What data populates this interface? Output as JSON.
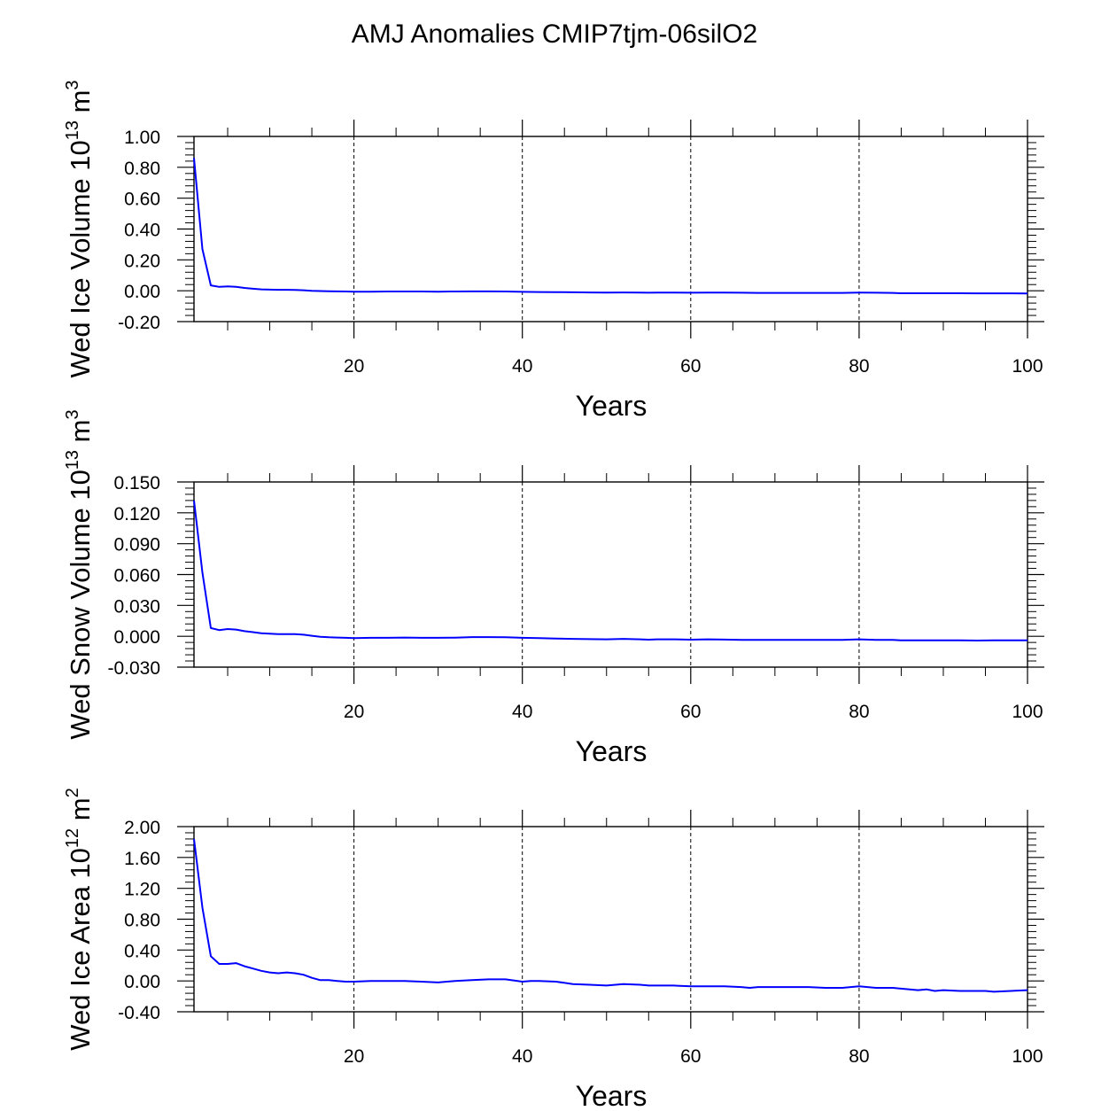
{
  "title": "AMJ Anomalies CMIP7tjm-06silO2",
  "chart_data": [
    {
      "type": "line",
      "title": "AMJ Anomalies CMIP7tjm-06silO2",
      "xlabel": "Years",
      "ylabel": "Wed Ice Volume 10",
      "ylabel_exp": "13",
      "ylabel_unit": " m",
      "ylabel_unit_exp": "3",
      "xlim": [
        1,
        100
      ],
      "ylim": [
        -0.2,
        1.0
      ],
      "xticks": [
        20,
        40,
        60,
        80,
        100
      ],
      "yticks": [
        -0.2,
        0.0,
        0.2,
        0.4,
        0.6,
        0.8,
        1.0
      ],
      "ytick_labels": [
        "-0.20",
        "0.00",
        "0.20",
        "0.40",
        "0.60",
        "0.80",
        "1.00"
      ],
      "grid_x": [
        20,
        40,
        60,
        80
      ],
      "series": [
        {
          "name": "Wed Ice Volume",
          "color": "#0000ff",
          "x": [
            1,
            2,
            3,
            4,
            5,
            6,
            7,
            8,
            9,
            10,
            11,
            12,
            13,
            14,
            15,
            16,
            17,
            18,
            19,
            20,
            22,
            24,
            26,
            28,
            30,
            32,
            34,
            36,
            38,
            40,
            42,
            44,
            46,
            48,
            50,
            52,
            54,
            55,
            56,
            58,
            60,
            62,
            64,
            66,
            68,
            70,
            72,
            74,
            76,
            78,
            80,
            82,
            84,
            85,
            86,
            88,
            90,
            92,
            94,
            96,
            98,
            100
          ],
          "values": [
            0.86,
            0.27,
            0.035,
            0.025,
            0.028,
            0.025,
            0.018,
            0.013,
            0.009,
            0.007,
            0.006,
            0.006,
            0.005,
            0.003,
            0.0,
            -0.002,
            -0.003,
            -0.004,
            -0.005,
            -0.006,
            -0.006,
            -0.005,
            -0.005,
            -0.005,
            -0.006,
            -0.005,
            -0.004,
            -0.004,
            -0.005,
            -0.007,
            -0.008,
            -0.009,
            -0.01,
            -0.011,
            -0.012,
            -0.011,
            -0.012,
            -0.013,
            -0.012,
            -0.012,
            -0.013,
            -0.012,
            -0.012,
            -0.013,
            -0.014,
            -0.014,
            -0.014,
            -0.014,
            -0.014,
            -0.014,
            -0.012,
            -0.013,
            -0.014,
            -0.016,
            -0.016,
            -0.016,
            -0.016,
            -0.016,
            -0.017,
            -0.017,
            -0.017,
            -0.018
          ]
        }
      ]
    },
    {
      "type": "line",
      "xlabel": "Years",
      "ylabel": "Wed Snow Volume 10",
      "ylabel_exp": "13",
      "ylabel_unit": " m",
      "ylabel_unit_exp": "3",
      "xlim": [
        1,
        100
      ],
      "ylim": [
        -0.03,
        0.15
      ],
      "xticks": [
        20,
        40,
        60,
        80,
        100
      ],
      "yticks": [
        -0.03,
        0.0,
        0.03,
        0.06,
        0.09,
        0.12,
        0.15
      ],
      "ytick_labels": [
        "-0.030",
        "0.000",
        "0.030",
        "0.060",
        "0.090",
        "0.120",
        "0.150"
      ],
      "grid_x": [
        20,
        40,
        60,
        80
      ],
      "series": [
        {
          "name": "Wed Snow Volume",
          "color": "#0000ff",
          "x": [
            1,
            2,
            3,
            4,
            5,
            6,
            7,
            8,
            9,
            10,
            11,
            12,
            13,
            14,
            15,
            16,
            17,
            18,
            19,
            20,
            22,
            24,
            26,
            28,
            30,
            32,
            34,
            36,
            38,
            40,
            42,
            44,
            46,
            48,
            50,
            52,
            54,
            55,
            56,
            58,
            60,
            62,
            64,
            66,
            68,
            70,
            72,
            74,
            76,
            78,
            80,
            82,
            84,
            85,
            86,
            88,
            90,
            92,
            94,
            96,
            98,
            100
          ],
          "values": [
            0.132,
            0.062,
            0.008,
            0.006,
            0.007,
            0.0065,
            0.005,
            0.004,
            0.003,
            0.0025,
            0.002,
            0.002,
            0.002,
            0.0015,
            0.0005,
            -0.0005,
            -0.001,
            -0.0012,
            -0.0015,
            -0.0018,
            -0.0015,
            -0.0015,
            -0.0012,
            -0.0015,
            -0.0015,
            -0.0013,
            -0.0008,
            -0.0008,
            -0.001,
            -0.0015,
            -0.0018,
            -0.0022,
            -0.0025,
            -0.0028,
            -0.003,
            -0.0025,
            -0.003,
            -0.0033,
            -0.003,
            -0.003,
            -0.0033,
            -0.003,
            -0.0032,
            -0.0035,
            -0.0036,
            -0.0036,
            -0.0036,
            -0.0036,
            -0.0035,
            -0.0035,
            -0.003,
            -0.0035,
            -0.0036,
            -0.004,
            -0.004,
            -0.004,
            -0.004,
            -0.004,
            -0.0042,
            -0.004,
            -0.004,
            -0.004
          ]
        }
      ]
    },
    {
      "type": "line",
      "xlabel": "Years",
      "ylabel": "Wed Ice Area 10",
      "ylabel_exp": "12",
      "ylabel_unit": " m",
      "ylabel_unit_exp": "2",
      "xlim": [
        1,
        100
      ],
      "ylim": [
        -0.4,
        2.0
      ],
      "xticks": [
        20,
        40,
        60,
        80,
        100
      ],
      "yticks": [
        -0.4,
        0.0,
        0.4,
        0.8,
        1.2,
        1.6,
        2.0
      ],
      "ytick_labels": [
        "-0.40",
        "0.00",
        "0.40",
        "0.80",
        "1.20",
        "1.60",
        "2.00"
      ],
      "grid_x": [
        20,
        40,
        60,
        80
      ],
      "series": [
        {
          "name": "Wed Ice Area",
          "color": "#0000ff",
          "x": [
            1,
            2,
            3,
            4,
            5,
            6,
            7,
            8,
            9,
            10,
            11,
            12,
            13,
            14,
            15,
            16,
            17,
            18,
            19,
            20,
            22,
            24,
            26,
            28,
            30,
            32,
            34,
            36,
            38,
            40,
            41,
            42,
            44,
            46,
            48,
            50,
            52,
            54,
            55,
            56,
            58,
            60,
            62,
            64,
            66,
            67,
            68,
            70,
            72,
            73,
            74,
            76,
            78,
            80,
            82,
            84,
            85,
            86,
            87,
            88,
            89,
            90,
            92,
            94,
            95,
            96,
            98,
            100
          ],
          "values": [
            1.84,
            0.95,
            0.32,
            0.22,
            0.22,
            0.23,
            0.19,
            0.16,
            0.13,
            0.11,
            0.1,
            0.11,
            0.1,
            0.08,
            0.04,
            0.01,
            0.01,
            0.0,
            -0.01,
            -0.01,
            0.0,
            0.0,
            0.0,
            -0.01,
            -0.02,
            0.0,
            0.01,
            0.02,
            0.02,
            -0.01,
            0.0,
            0.0,
            -0.01,
            -0.04,
            -0.05,
            -0.06,
            -0.04,
            -0.05,
            -0.06,
            -0.06,
            -0.06,
            -0.07,
            -0.07,
            -0.07,
            -0.08,
            -0.09,
            -0.08,
            -0.08,
            -0.08,
            -0.08,
            -0.08,
            -0.09,
            -0.09,
            -0.07,
            -0.09,
            -0.09,
            -0.1,
            -0.11,
            -0.12,
            -0.11,
            -0.13,
            -0.12,
            -0.13,
            -0.13,
            -0.13,
            -0.14,
            -0.13,
            -0.12
          ]
        }
      ]
    }
  ]
}
